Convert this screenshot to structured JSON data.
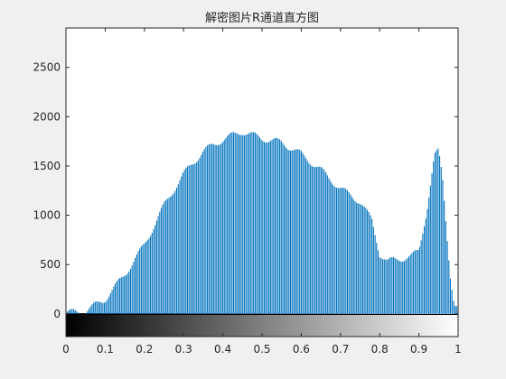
{
  "chart_data": {
    "type": "bar",
    "title": "解密图片R通道直方图",
    "xlabel": "",
    "ylabel": "",
    "xlim": [
      0,
      1
    ],
    "ylim": [
      -230,
      2900
    ],
    "bins": 256,
    "x_ticks": [
      "0",
      "0.1",
      "0.2",
      "0.3",
      "0.4",
      "0.5",
      "0.6",
      "0.7",
      "0.8",
      "0.9",
      "1"
    ],
    "y_ticks": [
      "0",
      "500",
      "1000",
      "1500",
      "2000",
      "2500"
    ],
    "bar_color": "#0072BD",
    "colorbar": "gray",
    "profile": [
      [
        0.0,
        10
      ],
      [
        0.05,
        30
      ],
      [
        0.1,
        150
      ],
      [
        0.15,
        400
      ],
      [
        0.2,
        700
      ],
      [
        0.25,
        1100
      ],
      [
        0.3,
        1420
      ],
      [
        0.35,
        1650
      ],
      [
        0.4,
        1770
      ],
      [
        0.45,
        1850
      ],
      [
        0.5,
        1780
      ],
      [
        0.55,
        1740
      ],
      [
        0.6,
        1620
      ],
      [
        0.65,
        1460
      ],
      [
        0.7,
        1270
      ],
      [
        0.75,
        1140
      ],
      [
        0.78,
        950
      ],
      [
        0.8,
        610
      ],
      [
        0.82,
        530
      ],
      [
        0.85,
        560
      ],
      [
        0.88,
        580
      ],
      [
        0.9,
        640
      ],
      [
        0.92,
        1050
      ],
      [
        0.94,
        1600
      ],
      [
        0.95,
        1650
      ],
      [
        0.96,
        1400
      ],
      [
        0.97,
        900
      ],
      [
        0.98,
        400
      ],
      [
        0.99,
        80
      ],
      [
        1.0,
        40
      ]
    ]
  }
}
